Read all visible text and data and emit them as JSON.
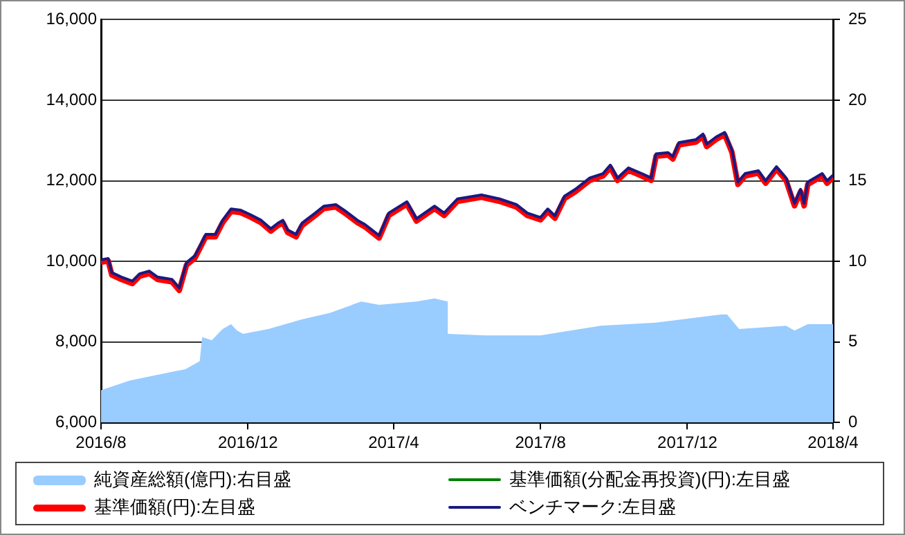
{
  "chart_data": {
    "type": "line",
    "xlim": [
      "2016-08-01",
      "2018-04-01"
    ],
    "xticks": [
      {
        "value": "2016-08-01",
        "label": "2016/8"
      },
      {
        "value": "2016-12-01",
        "label": "2016/12"
      },
      {
        "value": "2017-04-01",
        "label": "2017/4"
      },
      {
        "value": "2017-08-01",
        "label": "2017/8"
      },
      {
        "value": "2017-12-01",
        "label": "2017/12"
      },
      {
        "value": "2018-04-01",
        "label": "2018/4"
      }
    ],
    "ylim": [
      6000,
      16000
    ],
    "yticks": [
      {
        "value": 6000,
        "label": "6,000"
      },
      {
        "value": 8000,
        "label": "8,000"
      },
      {
        "value": 10000,
        "label": "10,000"
      },
      {
        "value": 12000,
        "label": "12,000"
      },
      {
        "value": 14000,
        "label": "14,000"
      },
      {
        "value": 16000,
        "label": "16,000"
      }
    ],
    "y2lim": [
      0,
      25
    ],
    "y2ticks": [
      0,
      5,
      10,
      15,
      20,
      25
    ],
    "grid": "y",
    "legend": "bottom",
    "marker": "none",
    "line_style": "solid",
    "series": [
      {
        "name": "純資産総額(億円):右目盛",
        "type": "area",
        "axis": "y2",
        "color": "#99ccff",
        "x": [
          "2016-08-01",
          "2016-08-25",
          "2016-10-03",
          "2016-10-10",
          "2016-10-22",
          "2016-10-24",
          "2016-11-01",
          "2016-11-10",
          "2016-11-17",
          "2016-11-22",
          "2016-11-27",
          "2016-12-18",
          "2017-01-15",
          "2017-02-07",
          "2017-03-05",
          "2017-03-20",
          "2017-04-20",
          "2017-05-05",
          "2017-05-16",
          "2017-05-16",
          "2017-06-16",
          "2017-08-01",
          "2017-09-20",
          "2017-11-05",
          "2017-12-29",
          "2018-01-03",
          "2018-01-13",
          "2018-02-21",
          "2018-02-28",
          "2018-03-11",
          "2018-04-01"
        ],
        "values": [
          2.0,
          2.6,
          3.2,
          3.3,
          3.8,
          5.3,
          5.1,
          5.8,
          6.1,
          5.7,
          5.5,
          5.8,
          6.4,
          6.8,
          7.5,
          7.3,
          7.5,
          7.7,
          7.5,
          5.5,
          5.4,
          5.4,
          6.0,
          6.2,
          6.7,
          6.7,
          5.8,
          6.0,
          5.7,
          6.1,
          6.1
        ]
      },
      {
        "name": "基準価額(分配金再投資)(円):左目盛",
        "color": "#008000"
      },
      {
        "name": "基準価額(円):左目盛",
        "color": "#ff0000",
        "x": [
          "2016-08-01",
          "2016-08-07",
          "2016-08-10",
          "2016-08-18",
          "2016-08-27",
          "2016-09-02",
          "2016-09-10",
          "2016-09-17",
          "2016-09-29",
          "2016-10-05",
          "2016-10-11",
          "2016-10-18",
          "2016-10-24",
          "2016-10-27",
          "2016-11-04",
          "2016-11-10",
          "2016-11-17",
          "2016-11-25",
          "2016-12-03",
          "2016-12-12",
          "2016-12-20",
          "2016-12-26",
          "2016-12-30",
          "2017-01-03",
          "2017-01-10",
          "2017-01-15",
          "2017-01-26",
          "2017-02-02",
          "2017-02-12",
          "2017-02-19",
          "2017-03-02",
          "2017-03-08",
          "2017-03-14",
          "2017-03-20",
          "2017-03-28",
          "2017-04-12",
          "2017-04-20",
          "2017-05-05",
          "2017-05-13",
          "2017-05-24",
          "2017-06-13",
          "2017-06-28",
          "2017-07-12",
          "2017-07-21",
          "2017-08-01",
          "2017-08-07",
          "2017-08-13",
          "2017-08-21",
          "2017-08-30",
          "2017-09-11",
          "2017-09-22",
          "2017-09-28",
          "2017-10-04",
          "2017-10-13",
          "2017-10-24",
          "2017-11-01",
          "2017-11-05",
          "2017-11-15",
          "2017-11-19",
          "2017-11-24",
          "2017-12-08",
          "2017-12-14",
          "2017-12-17",
          "2017-12-25",
          "2018-01-01",
          "2018-01-07",
          "2018-01-12",
          "2018-01-18",
          "2018-01-29",
          "2018-02-04",
          "2018-02-13",
          "2018-02-21",
          "2018-02-28",
          "2018-03-05",
          "2018-03-08",
          "2018-03-11",
          "2018-03-23",
          "2018-03-27",
          "2018-04-01"
        ],
        "values": [
          9980,
          10010,
          9660,
          9550,
          9450,
          9630,
          9700,
          9550,
          9490,
          9280,
          9910,
          10080,
          10430,
          10610,
          10610,
          10960,
          11240,
          11210,
          11100,
          10960,
          10750,
          10890,
          10960,
          10720,
          10610,
          10890,
          11140,
          11310,
          11350,
          11210,
          10960,
          10860,
          10720,
          10580,
          11140,
          11420,
          11000,
          11310,
          11140,
          11490,
          11590,
          11490,
          11350,
          11140,
          11030,
          11240,
          11070,
          11560,
          11730,
          12010,
          12120,
          12330,
          12010,
          12260,
          12120,
          12010,
          12610,
          12640,
          12540,
          12890,
          12960,
          13100,
          12850,
          13030,
          13140,
          12710,
          11910,
          12120,
          12190,
          11940,
          12290,
          12010,
          11380,
          11730,
          11380,
          11910,
          12120,
          11940,
          12080
        ]
      },
      {
        "name": "ベンチマーク:左目盛",
        "color": "#1a1a80",
        "x": [
          "2016-08-01",
          "2016-08-07",
          "2016-08-10",
          "2016-08-18",
          "2016-08-27",
          "2016-09-02",
          "2016-09-10",
          "2016-09-17",
          "2016-09-29",
          "2016-10-05",
          "2016-10-11",
          "2016-10-18",
          "2016-10-24",
          "2016-10-27",
          "2016-11-04",
          "2016-11-10",
          "2016-11-17",
          "2016-11-25",
          "2016-12-03",
          "2016-12-12",
          "2016-12-20",
          "2016-12-26",
          "2016-12-30",
          "2017-01-03",
          "2017-01-10",
          "2017-01-15",
          "2017-01-26",
          "2017-02-02",
          "2017-02-12",
          "2017-02-19",
          "2017-03-02",
          "2017-03-08",
          "2017-03-14",
          "2017-03-20",
          "2017-03-28",
          "2017-04-12",
          "2017-04-20",
          "2017-05-05",
          "2017-05-13",
          "2017-05-24",
          "2017-06-13",
          "2017-06-28",
          "2017-07-12",
          "2017-07-21",
          "2017-08-01",
          "2017-08-07",
          "2017-08-13",
          "2017-08-21",
          "2017-08-30",
          "2017-09-11",
          "2017-09-22",
          "2017-09-28",
          "2017-10-04",
          "2017-10-13",
          "2017-10-24",
          "2017-11-01",
          "2017-11-05",
          "2017-11-15",
          "2017-11-19",
          "2017-11-24",
          "2017-12-08",
          "2017-12-14",
          "2017-12-17",
          "2017-12-25",
          "2018-01-01",
          "2018-01-07",
          "2018-01-12",
          "2018-01-18",
          "2018-01-29",
          "2018-02-04",
          "2018-02-13",
          "2018-02-21",
          "2018-02-28",
          "2018-03-05",
          "2018-03-08",
          "2018-03-11",
          "2018-03-23",
          "2018-03-27",
          "2018-04-01"
        ],
        "values": [
          10040,
          10070,
          9720,
          9610,
          9510,
          9690,
          9760,
          9610,
          9550,
          9340,
          9970,
          10140,
          10490,
          10670,
          10670,
          11020,
          11300,
          11270,
          11160,
          11020,
          10810,
          10950,
          11020,
          10780,
          10670,
          10950,
          11200,
          11370,
          11410,
          11270,
          11020,
          10920,
          10780,
          10640,
          11200,
          11480,
          11060,
          11370,
          11200,
          11550,
          11650,
          11550,
          11410,
          11200,
          11090,
          11300,
          11130,
          11620,
          11790,
          12070,
          12180,
          12390,
          12070,
          12320,
          12180,
          12070,
          12670,
          12700,
          12600,
          12950,
          13020,
          13160,
          12910,
          13090,
          13200,
          12770,
          11970,
          12180,
          12250,
          12000,
          12350,
          12070,
          11440,
          11790,
          11440,
          11970,
          12180,
          12000,
          12140
        ]
      }
    ]
  }
}
